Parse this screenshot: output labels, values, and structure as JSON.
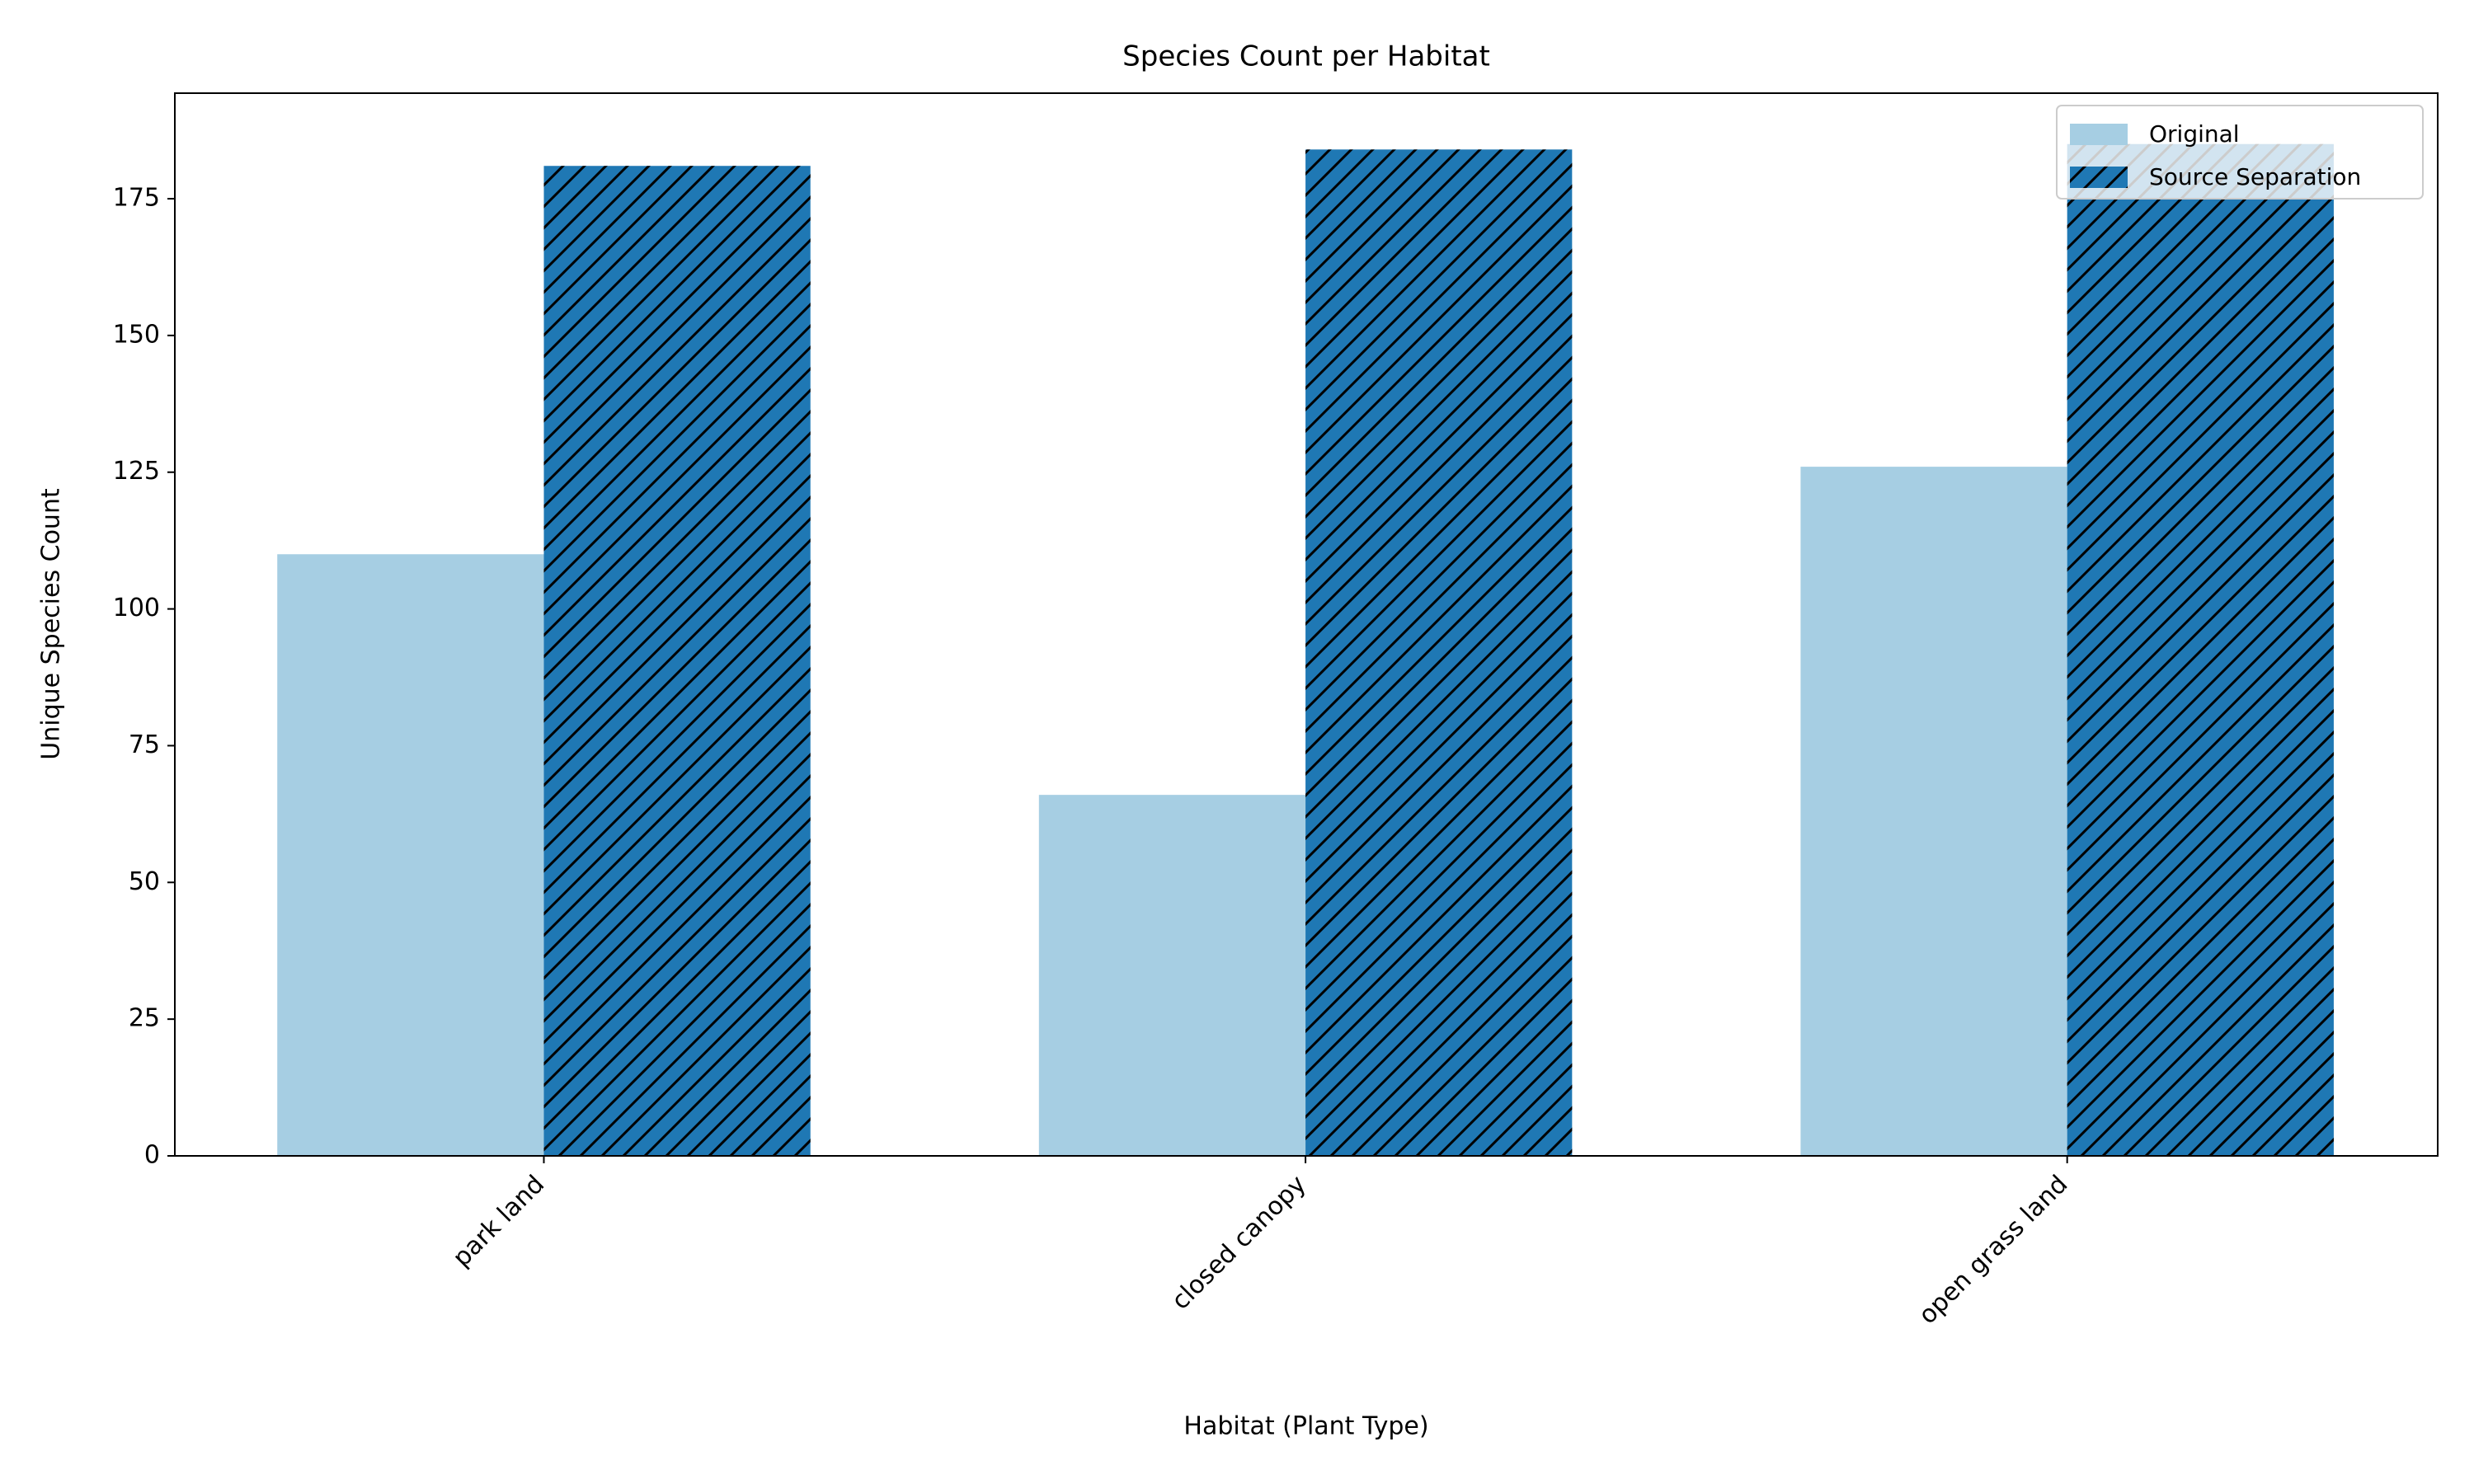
{
  "chart_data": {
    "type": "bar",
    "title": "Species Count per Habitat",
    "x_label": "Habitat (Plant Type)",
    "y_label": "Unique Species Count",
    "categories": [
      "park land",
      "closed canopy",
      "open grass land"
    ],
    "series": [
      {
        "name": "Original",
        "color": "#a6cee3",
        "values": [
          110,
          66,
          126
        ]
      },
      {
        "name": "Source Separation",
        "color": "#1f78b4",
        "hatch": "/",
        "values": [
          181,
          184,
          185
        ]
      }
    ],
    "ylim": [
      0,
      194.3
    ],
    "yticks": [
      0,
      25,
      50,
      75,
      100,
      125,
      150,
      175
    ],
    "grid": false,
    "legend": "upper right"
  }
}
